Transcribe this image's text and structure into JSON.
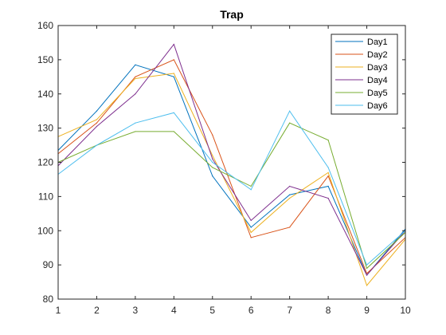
{
  "chart_data": {
    "type": "line",
    "title": "Trap",
    "xlabel": "",
    "ylabel": "",
    "x": [
      1,
      2,
      3,
      4,
      5,
      6,
      7,
      8,
      9,
      10
    ],
    "xlim": [
      1,
      10
    ],
    "ylim": [
      80,
      160
    ],
    "xticks": [
      1,
      2,
      3,
      4,
      5,
      6,
      7,
      8,
      9,
      10
    ],
    "yticks": [
      80,
      90,
      100,
      110,
      120,
      130,
      140,
      150,
      160
    ],
    "grid": false,
    "legend_position": "top-right",
    "series": [
      {
        "name": "Day1",
        "color": "#0072BD",
        "values": [
          123.5,
          135,
          148.5,
          145,
          116,
          101,
          110.5,
          113,
          87,
          100.5
        ]
      },
      {
        "name": "Day2",
        "color": "#D95319",
        "values": [
          122.5,
          131.5,
          145,
          150,
          128,
          98,
          101,
          116,
          87.5,
          98
        ]
      },
      {
        "name": "Day3",
        "color": "#EDB120",
        "values": [
          127.5,
          132.5,
          144.5,
          146,
          122,
          99.5,
          109.5,
          117,
          84,
          97.5
        ]
      },
      {
        "name": "Day4",
        "color": "#7E2F8E",
        "values": [
          119,
          130.5,
          140,
          154.5,
          121,
          103,
          113,
          109.5,
          87,
          100
        ]
      },
      {
        "name": "Day5",
        "color": "#77AC30",
        "values": [
          120,
          125,
          129,
          129,
          118.5,
          113,
          131.5,
          126.5,
          89,
          99.5
        ]
      },
      {
        "name": "Day6",
        "color": "#4DBEEE",
        "values": [
          116.5,
          125,
          131.5,
          134.5,
          120,
          112,
          135,
          118.5,
          90,
          100
        ]
      }
    ]
  }
}
